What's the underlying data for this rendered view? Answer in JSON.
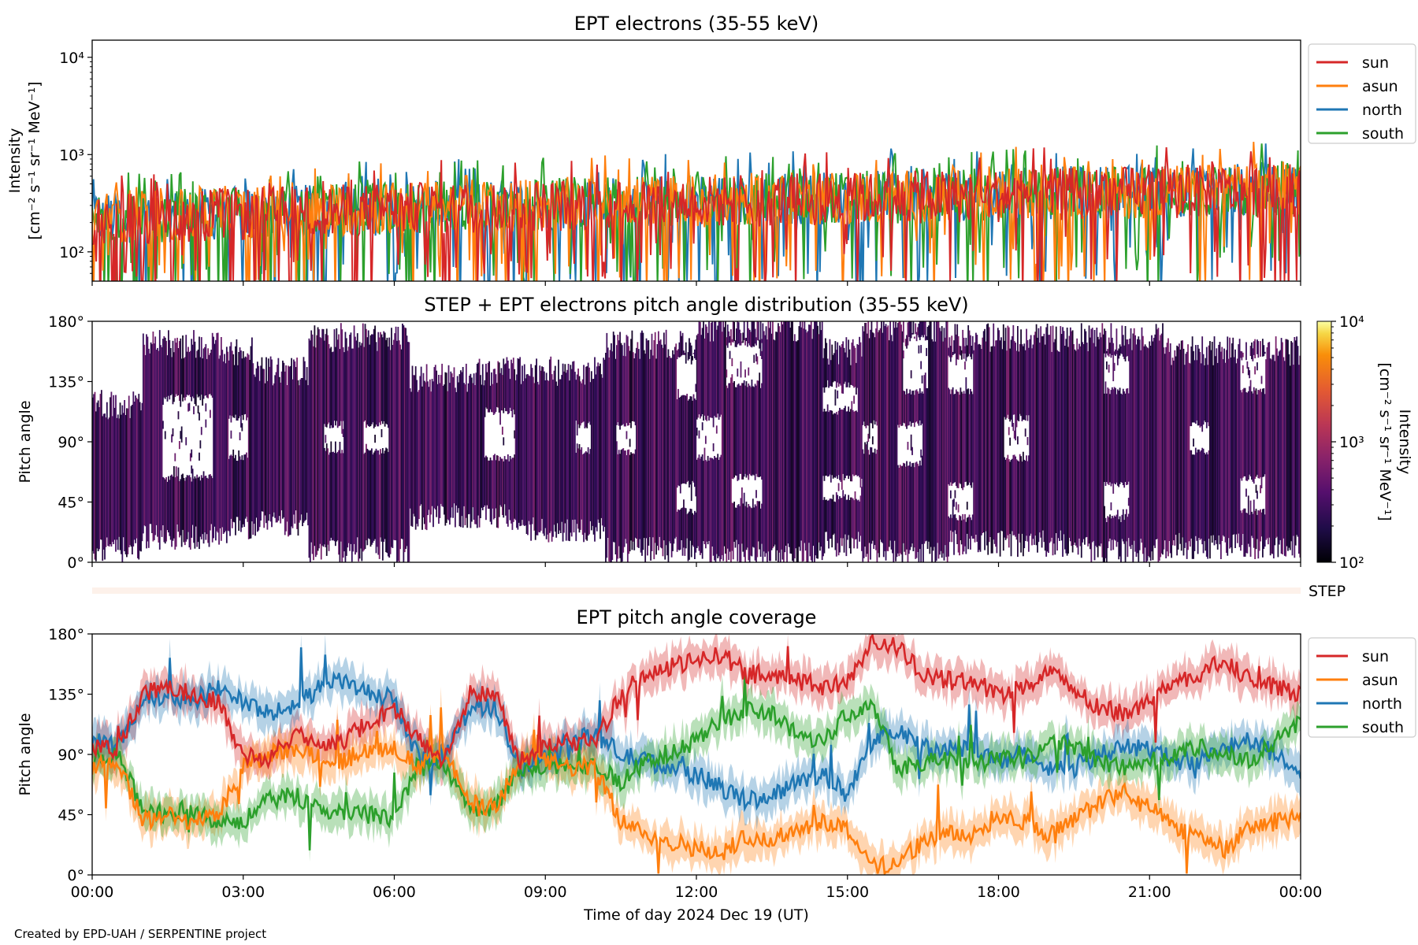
{
  "figure": {
    "credit": "Created by EPD-UAH / SERPENTINE project",
    "xlabel": "Time of day 2024 Dec 19 (UT)",
    "time_ticks": [
      "00:00",
      "03:00",
      "06:00",
      "09:00",
      "12:00",
      "15:00",
      "18:00",
      "21:00",
      "00:00"
    ]
  },
  "chart_data": [
    {
      "type": "line",
      "title": "EPT electrons (35-55 keV)",
      "ylabel_line1": "Intensity",
      "ylabel_line2": "[cm⁻² s⁻¹ sr⁻¹ MeV⁻¹]",
      "yscale": "log",
      "ylim": [
        50,
        15000
      ],
      "ytick_labels": [
        "10²",
        "10³",
        "10⁴"
      ],
      "ytick_values": [
        100,
        1000,
        10000
      ],
      "xlim_hours": [
        0,
        24
      ],
      "legend_position": "upper-right-outside",
      "series": [
        {
          "name": "sun",
          "color": "#d62728",
          "baseline_start": 220,
          "baseline_end": 430
        },
        {
          "name": "asun",
          "color": "#ff7f0e",
          "baseline_start": 230,
          "baseline_end": 440
        },
        {
          "name": "north",
          "color": "#1f77b4",
          "baseline_start": 220,
          "baseline_end": 450
        },
        {
          "name": "south",
          "color": "#2ca02c",
          "baseline_start": 225,
          "baseline_end": 440
        }
      ]
    },
    {
      "type": "heatmap",
      "title": "STEP + EPT electrons pitch angle distribution (35-55 keV)",
      "ylabel": "Pitch angle",
      "ylim": [
        0,
        180
      ],
      "ytick_labels": [
        "0°",
        "45°",
        "90°",
        "135°",
        "180°"
      ],
      "ytick_values": [
        0,
        45,
        90,
        135,
        180
      ],
      "colorbar": {
        "label_line1": "Intensity",
        "label_line2": "[cm⁻² s⁻¹ sr⁻¹ MeV⁻¹]",
        "scale": "log",
        "range": [
          100,
          10000
        ],
        "tick_labels": [
          "10²",
          "10³",
          "10⁴"
        ],
        "colormap": "inferno"
      },
      "bands": [
        {
          "start": 0,
          "end": 1,
          "lo": 5,
          "hi": 120,
          "holes": []
        },
        {
          "start": 1,
          "end": 2.6,
          "lo": 15,
          "hi": 165,
          "holes": [
            [
              1.4,
              2.4,
              60,
              120
            ]
          ]
        },
        {
          "start": 2.6,
          "end": 3.2,
          "lo": 20,
          "hi": 160,
          "holes": [
            [
              2.7,
              3.1,
              75,
              105
            ]
          ]
        },
        {
          "start": 3.2,
          "end": 4.3,
          "lo": 25,
          "hi": 145,
          "holes": []
        },
        {
          "start": 4.3,
          "end": 6.3,
          "lo": 5,
          "hi": 170,
          "holes": [
            [
              4.6,
              5.0,
              80,
              100
            ],
            [
              5.4,
              5.9,
              80,
              100
            ]
          ]
        },
        {
          "start": 6.3,
          "end": 7.6,
          "lo": 30,
          "hi": 140,
          "holes": []
        },
        {
          "start": 7.6,
          "end": 8.6,
          "lo": 30,
          "hi": 145,
          "holes": [
            [
              7.8,
              8.4,
              75,
              110
            ]
          ]
        },
        {
          "start": 8.6,
          "end": 10.2,
          "lo": 20,
          "hi": 145,
          "holes": [
            [
              9.6,
              9.9,
              80,
              100
            ]
          ]
        },
        {
          "start": 10.2,
          "end": 12.0,
          "lo": 5,
          "hi": 165,
          "holes": [
            [
              10.4,
              10.8,
              80,
              100
            ],
            [
              11.6,
              12.0,
              35,
              55
            ],
            [
              11.6,
              12.0,
              120,
              150
            ]
          ]
        },
        {
          "start": 12.0,
          "end": 14.5,
          "lo": 3,
          "hi": 178,
          "holes": [
            [
              11.9,
              12.5,
              75,
              105
            ],
            [
              12.7,
              13.3,
              40,
              60
            ],
            [
              12.6,
              13.3,
              130,
              160
            ]
          ]
        },
        {
          "start": 14.5,
          "end": 15.3,
          "lo": 10,
          "hi": 160,
          "holes": [
            [
              14.5,
              15.3,
              45,
              60
            ],
            [
              14.5,
              15.2,
              110,
              130
            ]
          ]
        },
        {
          "start": 15.3,
          "end": 17.0,
          "lo": 3,
          "hi": 178,
          "holes": [
            [
              15.0,
              15.6,
              80,
              100
            ],
            [
              16.0,
              16.5,
              70,
              100
            ],
            [
              16.1,
              16.6,
              125,
              165
            ]
          ]
        },
        {
          "start": 17.0,
          "end": 19.5,
          "lo": 10,
          "hi": 170,
          "holes": [
            [
              17.0,
              17.5,
              30,
              55
            ],
            [
              17.0,
              17.5,
              125,
              150
            ],
            [
              18.1,
              18.6,
              75,
              105
            ]
          ]
        },
        {
          "start": 19.5,
          "end": 21.3,
          "lo": 5,
          "hi": 170,
          "holes": [
            [
              20.1,
              20.6,
              30,
              55
            ],
            [
              20.1,
              20.6,
              125,
              150
            ]
          ]
        },
        {
          "start": 21.3,
          "end": 24,
          "lo": 8,
          "hi": 160,
          "holes": [
            [
              21.8,
              22.2,
              80,
              100
            ],
            [
              22.8,
              23.3,
              35,
              60
            ],
            [
              22.8,
              23.3,
              125,
              150
            ]
          ]
        }
      ]
    },
    {
      "type": "bar",
      "label": "STEP",
      "color": "#fdf1ea"
    },
    {
      "type": "line",
      "title": "EPT pitch angle coverage",
      "ylabel": "Pitch angle",
      "ylim": [
        0,
        180
      ],
      "ytick_labels": [
        "0°",
        "45°",
        "90°",
        "135°",
        "180°"
      ],
      "ytick_values": [
        0,
        45,
        90,
        135,
        180
      ],
      "legend_position": "upper-right-outside",
      "series": [
        {
          "name": "sun",
          "color": "#d62728",
          "hours": [
            0,
            0.5,
            1,
            1.5,
            2,
            2.5,
            3,
            3.5,
            4,
            4.5,
            5,
            5.5,
            6,
            6.5,
            7,
            7.5,
            8,
            8.5,
            9,
            9.5,
            10,
            10.5,
            11,
            11.5,
            12,
            12.5,
            13,
            13.5,
            14,
            14.5,
            15,
            15.5,
            16,
            16.5,
            17,
            17.5,
            18,
            18.5,
            19,
            19.5,
            20,
            20.5,
            21,
            21.5,
            22,
            22.5,
            23,
            23.5,
            24
          ],
          "values": [
            95,
            92,
            135,
            140,
            135,
            130,
            90,
            85,
            105,
            100,
            100,
            115,
            125,
            100,
            85,
            135,
            135,
            85,
            95,
            100,
            100,
            135,
            150,
            155,
            160,
            165,
            150,
            150,
            145,
            140,
            145,
            175,
            170,
            150,
            145,
            145,
            135,
            140,
            150,
            140,
            125,
            120,
            130,
            145,
            150,
            160,
            145,
            140,
            135
          ]
        },
        {
          "name": "asun",
          "color": "#ff7f0e",
          "hours": [
            0,
            0.5,
            1,
            1.5,
            2,
            2.5,
            3,
            3.5,
            4,
            4.5,
            5,
            5.5,
            6,
            6.5,
            7,
            7.5,
            8,
            8.5,
            9,
            9.5,
            10,
            10.5,
            11,
            11.5,
            12,
            12.5,
            13,
            13.5,
            14,
            14.5,
            15,
            15.5,
            16,
            16.5,
            17,
            17.5,
            18,
            18.5,
            19,
            19.5,
            20,
            20.5,
            21,
            21.5,
            22,
            22.5,
            23,
            23.5,
            24
          ],
          "values": [
            80,
            85,
            40,
            45,
            40,
            45,
            80,
            90,
            95,
            90,
            85,
            95,
            95,
            80,
            95,
            50,
            50,
            85,
            85,
            80,
            80,
            40,
            30,
            25,
            20,
            15,
            30,
            25,
            35,
            40,
            35,
            5,
            10,
            25,
            30,
            30,
            45,
            40,
            30,
            40,
            55,
            60,
            50,
            35,
            30,
            20,
            35,
            40,
            45
          ]
        },
        {
          "name": "north",
          "color": "#1f77b4",
          "hours": [
            0,
            0.5,
            1,
            1.5,
            2,
            2.5,
            3,
            3.5,
            4,
            4.5,
            5,
            5.5,
            6,
            6.5,
            7,
            7.5,
            8,
            8.5,
            9,
            9.5,
            10,
            10.5,
            11,
            11.5,
            12,
            12.5,
            13,
            13.5,
            14,
            14.5,
            15,
            15.5,
            16,
            16.5,
            17,
            17.5,
            18,
            18.5,
            19,
            19.5,
            20,
            20.5,
            21,
            21.5,
            22,
            22.5,
            23,
            23.5,
            24
          ],
          "values": [
            100,
            95,
            130,
            135,
            130,
            140,
            130,
            120,
            125,
            140,
            145,
            135,
            130,
            85,
            90,
            125,
            125,
            80,
            90,
            100,
            105,
            90,
            85,
            80,
            75,
            65,
            55,
            60,
            70,
            75,
            60,
            100,
            110,
            95,
            95,
            95,
            85,
            90,
            80,
            80,
            90,
            95,
            95,
            85,
            85,
            95,
            100,
            90,
            75
          ]
        },
        {
          "name": "south",
          "color": "#2ca02c",
          "hours": [
            0,
            0.5,
            1,
            1.5,
            2,
            2.5,
            3,
            3.5,
            4,
            4.5,
            5,
            5.5,
            6,
            6.5,
            7,
            7.5,
            8,
            8.5,
            9,
            9.5,
            10,
            10.5,
            11,
            11.5,
            12,
            12.5,
            13,
            13.5,
            14,
            14.5,
            15,
            15.5,
            16,
            16.5,
            17,
            17.5,
            18,
            18.5,
            19,
            19.5,
            20,
            20.5,
            21,
            21.5,
            22,
            22.5,
            23,
            23.5,
            24
          ],
          "values": [
            85,
            90,
            50,
            45,
            50,
            40,
            40,
            55,
            60,
            50,
            45,
            45,
            40,
            85,
            80,
            50,
            50,
            80,
            80,
            85,
            80,
            70,
            85,
            90,
            100,
            115,
            125,
            120,
            105,
            100,
            120,
            130,
            80,
            85,
            85,
            85,
            90,
            85,
            100,
            95,
            85,
            80,
            85,
            90,
            95,
            90,
            85,
            100,
            115
          ]
        }
      ]
    }
  ]
}
